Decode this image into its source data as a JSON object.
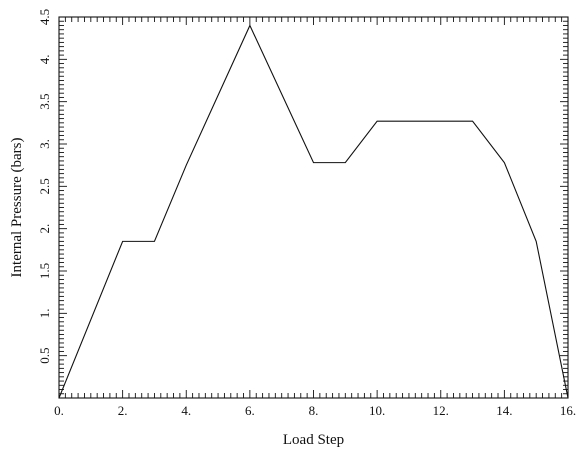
{
  "chart_data": {
    "type": "line",
    "title": "",
    "xlabel": "Load Step",
    "ylabel": "Internal Pressure (bars)",
    "xlim": [
      0,
      16
    ],
    "ylim": [
      0,
      4.5
    ],
    "grid": false,
    "x_ticks": [
      0,
      2,
      4,
      6,
      8,
      10,
      12,
      14,
      16
    ],
    "x_tick_labels": [
      "0.",
      "2.",
      "4.",
      "6.",
      "8.",
      "10.",
      "12.",
      "14.",
      "16."
    ],
    "y_ticks": [
      0.5,
      1,
      1.5,
      2,
      2.5,
      3,
      3.5,
      4,
      4.5
    ],
    "y_tick_labels": [
      "0.5",
      "1.",
      "1.5",
      "2.",
      "2.5",
      "3.",
      "3.5",
      "4.",
      "4.5"
    ],
    "series": [
      {
        "x": [
          0,
          2,
          3,
          4,
          6,
          8,
          9,
          10,
          13,
          14,
          15,
          16
        ],
        "values": [
          0,
          1.85,
          1.85,
          2.75,
          4.4,
          2.78,
          2.78,
          3.27,
          3.27,
          2.78,
          1.85,
          0
        ],
        "color": "#111111"
      }
    ]
  }
}
